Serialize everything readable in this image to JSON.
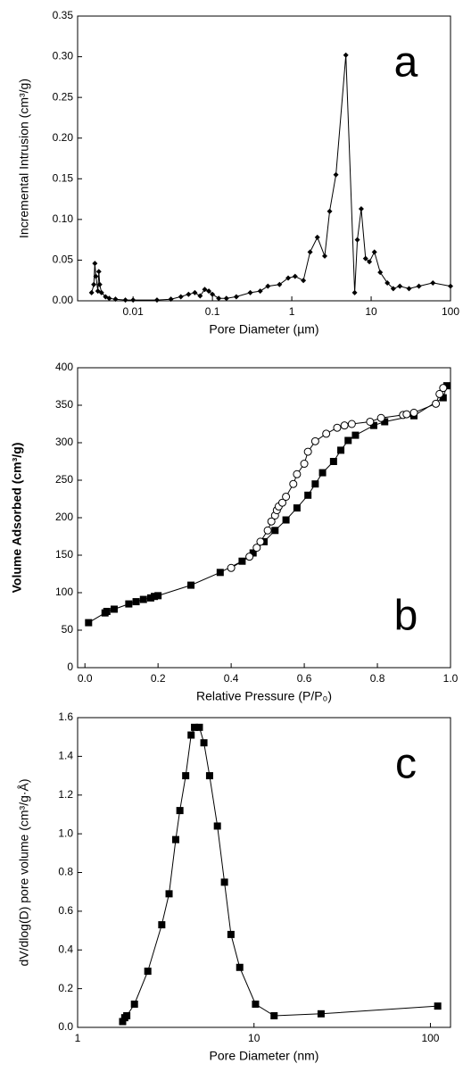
{
  "chart_data": [
    {
      "type": "line",
      "annotation": "a",
      "x_label": "Pore Diameter (µm)",
      "y_label": "Incremental Intrusion (cm³/g)",
      "xscale": "log",
      "xlim": [
        0.002,
        100
      ],
      "xticks": [
        0.01,
        0.1,
        1,
        10,
        100
      ],
      "ylim": [
        0,
        0.35
      ],
      "yticks": [
        {
          "value": 0,
          "label": "0.00"
        },
        {
          "value": 0.05,
          "label": "0.05"
        },
        {
          "value": 0.1,
          "label": "0.10"
        },
        {
          "value": 0.15,
          "label": "0.15"
        },
        {
          "value": 0.2,
          "label": "0.20"
        },
        {
          "value": 0.25,
          "label": "0.25"
        },
        {
          "value": 0.3,
          "label": "0.30"
        },
        {
          "value": 0.35,
          "label": "0.35"
        }
      ],
      "series": [
        {
          "color": "#000000",
          "marker": "diamond",
          "x": [
            0.003,
            0.0032,
            0.0033,
            0.0034,
            0.0036,
            0.0037,
            0.0038,
            0.004,
            0.0045,
            0.005,
            0.006,
            0.008,
            0.01,
            0.02,
            0.03,
            0.04,
            0.05,
            0.06,
            0.07,
            0.08,
            0.09,
            0.1,
            0.12,
            0.15,
            0.2,
            0.3,
            0.4,
            0.5,
            0.7,
            0.9,
            1.1,
            1.4,
            1.7,
            2.1,
            2.6,
            3,
            3.6,
            4.8,
            6.2,
            6.7,
            7.5,
            8.5,
            9.5,
            11,
            13,
            16,
            19,
            23,
            30,
            40,
            60,
            100
          ],
          "values": [
            0.01,
            0.02,
            0.046,
            0.03,
            0.012,
            0.036,
            0.02,
            0.01,
            0.005,
            0.003,
            0.002,
            0.001,
            0.001,
            0.001,
            0.002,
            0.005,
            0.008,
            0.01,
            0.006,
            0.014,
            0.012,
            0.008,
            0.003,
            0.003,
            0.005,
            0.01,
            0.012,
            0.018,
            0.02,
            0.028,
            0.03,
            0.025,
            0.06,
            0.078,
            0.055,
            0.11,
            0.155,
            0.302,
            0.01,
            0.075,
            0.113,
            0.052,
            0.048,
            0.06,
            0.035,
            0.022,
            0.015,
            0.018,
            0.015,
            0.018,
            0.022,
            0.018
          ]
        }
      ]
    },
    {
      "type": "line",
      "annotation": "b",
      "x_label": "Relative Pressure (P/P₀)",
      "y_label": "Volume Adsorbed (cm³/g)",
      "xscale": "linear",
      "xlim": [
        -0.02,
        1.0
      ],
      "xticks": [
        {
          "value": 0,
          "label": "0.0"
        },
        {
          "value": 0.2,
          "label": "0.2"
        },
        {
          "value": 0.4,
          "label": "0.4"
        },
        {
          "value": 0.6,
          "label": "0.6"
        },
        {
          "value": 0.8,
          "label": "0.8"
        },
        {
          "value": 1,
          "label": "1.0"
        }
      ],
      "ylim": [
        0,
        400
      ],
      "yticks": [
        0,
        50,
        100,
        150,
        200,
        250,
        300,
        350,
        400
      ],
      "series": [
        {
          "color": "#000000",
          "marker": "square",
          "x": [
            0.01,
            0.055,
            0.06,
            0.08,
            0.12,
            0.14,
            0.16,
            0.18,
            0.19,
            0.2,
            0.29,
            0.37,
            0.43,
            0.46,
            0.49,
            0.52,
            0.55,
            0.58,
            0.61,
            0.63,
            0.65,
            0.68,
            0.7,
            0.72,
            0.74,
            0.79,
            0.82,
            0.9,
            0.98,
            0.99
          ],
          "values": [
            60,
            73,
            75,
            78,
            85,
            88,
            91,
            93,
            95,
            96,
            110,
            127,
            142,
            153,
            168,
            183,
            197,
            213,
            230,
            245,
            260,
            275,
            290,
            303,
            310,
            323,
            328,
            336,
            360,
            376
          ]
        },
        {
          "color": "#000000",
          "marker": "circle-open",
          "x": [
            0.4,
            0.45,
            0.47,
            0.48,
            0.5,
            0.51,
            0.52,
            0.525,
            0.53,
            0.54,
            0.55,
            0.57,
            0.58,
            0.6,
            0.61,
            0.63,
            0.66,
            0.69,
            0.71,
            0.73,
            0.78,
            0.81,
            0.87,
            0.88,
            0.9,
            0.96,
            0.97,
            0.98
          ],
          "values": [
            133,
            148,
            160,
            168,
            183,
            195,
            203,
            210,
            215,
            220,
            228,
            245,
            258,
            272,
            288,
            302,
            312,
            320,
            323,
            325,
            328,
            333,
            337,
            338,
            340,
            352,
            365,
            373
          ]
        }
      ]
    },
    {
      "type": "line",
      "annotation": "c",
      "x_label": "Pore Diameter (nm)",
      "y_label": "dV/dlog(D) pore volume (cm³/g·Å)",
      "xscale": "log",
      "xlim": [
        1,
        130
      ],
      "xticks": [
        1,
        10,
        100
      ],
      "ylim": [
        0,
        1.6
      ],
      "yticks": [
        {
          "value": 0,
          "label": "0.0"
        },
        {
          "value": 0.2,
          "label": "0.2"
        },
        {
          "value": 0.4,
          "label": "0.4"
        },
        {
          "value": 0.6,
          "label": "0.6"
        },
        {
          "value": 0.8,
          "label": "0.8"
        },
        {
          "value": 1,
          "label": "1.0"
        },
        {
          "value": 1.2,
          "label": "1.2"
        },
        {
          "value": 1.4,
          "label": "1.4"
        },
        {
          "value": 1.6,
          "label": "1.6"
        }
      ],
      "series": [
        {
          "color": "#000000",
          "marker": "square",
          "x": [
            1.8,
            1.85,
            1.9,
            2.1,
            2.5,
            3,
            3.3,
            3.6,
            3.8,
            4.1,
            4.4,
            4.6,
            4.9,
            5.2,
            5.6,
            6.2,
            6.8,
            7.4,
            8.3,
            10.2,
            13,
            24,
            110
          ],
          "values": [
            0.03,
            0.05,
            0.06,
            0.12,
            0.29,
            0.53,
            0.69,
            0.97,
            1.12,
            1.3,
            1.51,
            1.55,
            1.55,
            1.47,
            1.3,
            1.04,
            0.75,
            0.48,
            0.31,
            0.12,
            0.06,
            0.07,
            0.11
          ]
        }
      ]
    }
  ]
}
